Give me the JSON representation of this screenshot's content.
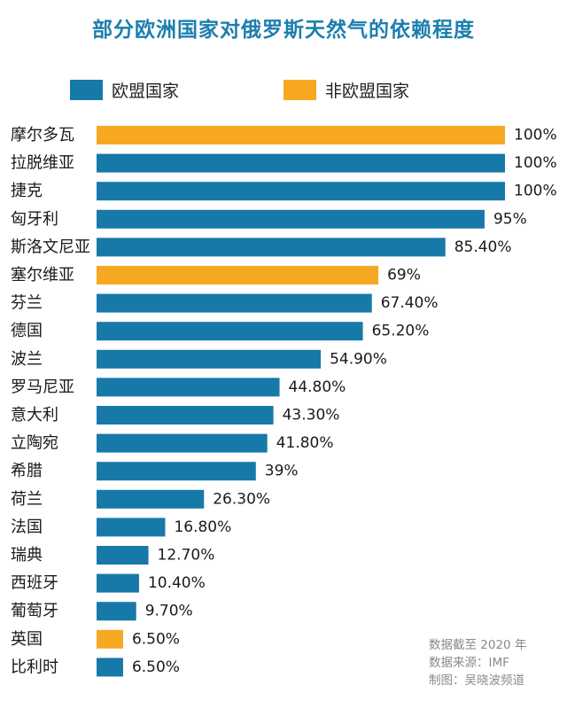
{
  "chart_data": {
    "type": "bar",
    "orientation": "horizontal",
    "title": "部分欧洲国家对俄罗斯天然气的依赖程度",
    "xlim": [
      0,
      100
    ],
    "legend": [
      {
        "name": "欧盟国家",
        "color": "#1779a8"
      },
      {
        "name": "非欧盟国家",
        "color": "#f7a823"
      }
    ],
    "categories": [
      "摩尔多瓦",
      "拉脱维亚",
      "捷克",
      "匈牙利",
      "斯洛文尼亚",
      "塞尔维亚",
      "芬兰",
      "德国",
      "波兰",
      "罗马尼亚",
      "意大利",
      "立陶宛",
      "希腊",
      "荷兰",
      "法国",
      "瑞典",
      "西班牙",
      "葡萄牙",
      "英国",
      "比利时"
    ],
    "values": [
      100,
      100,
      100,
      95,
      85.4,
      69,
      67.4,
      65.2,
      54.9,
      44.8,
      43.3,
      41.8,
      39,
      26.3,
      16.8,
      12.7,
      10.4,
      9.7,
      6.5,
      6.5
    ],
    "value_labels": [
      "100%",
      "100%",
      "100%",
      "95%",
      "85.40%",
      "69%",
      "67.40%",
      "65.20%",
      "54.90%",
      "44.80%",
      "43.30%",
      "41.80%",
      "39%",
      "26.30%",
      "16.80%",
      "12.70%",
      "10.40%",
      "9.70%",
      "6.50%",
      "6.50%"
    ],
    "groups": [
      "非欧盟国家",
      "欧盟国家",
      "欧盟国家",
      "欧盟国家",
      "欧盟国家",
      "非欧盟国家",
      "欧盟国家",
      "欧盟国家",
      "欧盟国家",
      "欧盟国家",
      "欧盟国家",
      "欧盟国家",
      "欧盟国家",
      "欧盟国家",
      "欧盟国家",
      "欧盟国家",
      "欧盟国家",
      "欧盟国家",
      "非欧盟国家",
      "欧盟国家"
    ]
  },
  "source": {
    "line1": "数据截至 2020 年",
    "line2": "数据来源：IMF",
    "line3": "制图：吴晓波频道"
  }
}
